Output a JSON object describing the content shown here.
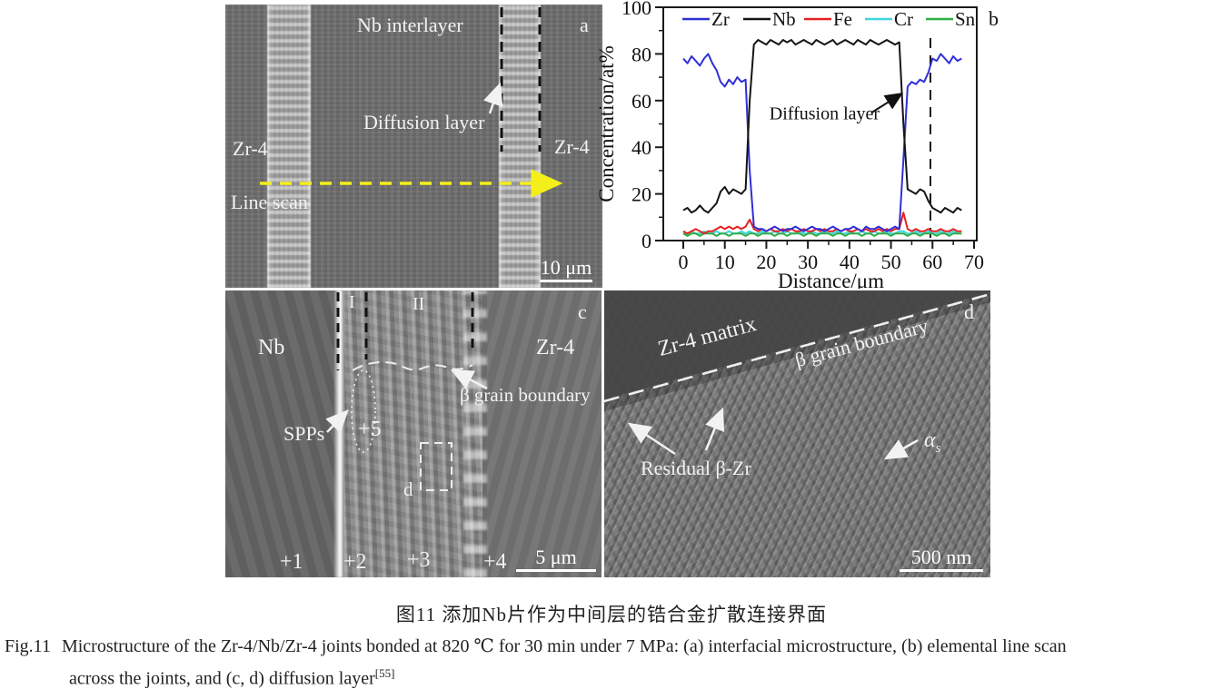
{
  "figure": {
    "panel_a": {
      "label": "a",
      "top_label": "Nb interlayer",
      "diffusion_label": "Diffusion layer",
      "left_material": "Zr-4",
      "right_material": "Zr-4",
      "line_scan": "Line scan",
      "scale_bar": "10 μm"
    },
    "panel_c": {
      "label": "c",
      "zone_1": "I",
      "zone_2": "II",
      "left_material": "Nb",
      "right_material": "Zr-4",
      "spps": "SPPs",
      "beta_gb": "β grain boundary",
      "detail_box_label": "d",
      "marker_1": "+1",
      "marker_2": "+2",
      "marker_3": "+3",
      "marker_4": "+4",
      "marker_5": "+5",
      "scale_bar": "5 μm"
    },
    "panel_d": {
      "label": "d",
      "matrix": "Zr-4 matrix",
      "beta_gb": "β grain boundary",
      "residual": "Residual β-Zr",
      "alpha": "α",
      "alpha_sub": "s",
      "scale_bar": "500 nm"
    },
    "colors": {
      "marker_yellow": "#f4ef1a",
      "sem_text_white": "#f2f2f2"
    }
  },
  "chart_data": {
    "type": "line",
    "title": "",
    "xlabel": "Distance/μm",
    "ylabel": "Concentration/at%",
    "panel_label": "b",
    "xlim": [
      0,
      70
    ],
    "ylim": [
      0,
      100
    ],
    "x_ticks": [
      0,
      10,
      20,
      30,
      40,
      50,
      60,
      70
    ],
    "y_ticks": [
      0,
      20,
      40,
      60,
      80,
      100
    ],
    "x_minor_ticks": [
      5,
      15,
      25,
      35,
      45,
      55,
      65
    ],
    "y_minor_ticks": [
      10,
      30,
      50,
      70,
      90
    ],
    "grid": false,
    "legend_position": "top-inside",
    "dashed_guide_x": 59.5,
    "annotation": {
      "text": "Diffusion layer",
      "text_x": 34,
      "text_y": 52,
      "arrow_from_x": 45.5,
      "arrow_from_y": 55,
      "arrow_to_x": 52.6,
      "arrow_to_y": 63
    },
    "x_step": 1,
    "series": [
      {
        "name": "Cr",
        "color": "#3ed6e0",
        "values": [
          3,
          3,
          4,
          3,
          3,
          4,
          3,
          3,
          4,
          3,
          3,
          4,
          3,
          3,
          4,
          3,
          4,
          3,
          3,
          4,
          3,
          3,
          4,
          3,
          3,
          4,
          3,
          3,
          4,
          3,
          3,
          4,
          3,
          3,
          4,
          3,
          3,
          4,
          3,
          3,
          4,
          3,
          3,
          4,
          3,
          3,
          4,
          3,
          3,
          4,
          3,
          3,
          4,
          4,
          3,
          3,
          4,
          3,
          3,
          4,
          3,
          3,
          4,
          3,
          3,
          4,
          3,
          3
        ]
      },
      {
        "name": "Sn",
        "color": "#2fae44",
        "values": [
          3,
          2,
          3,
          3,
          2,
          3,
          3,
          3,
          2,
          3,
          3,
          2,
          3,
          3,
          3,
          2,
          3,
          3,
          2,
          3,
          3,
          3,
          2,
          3,
          3,
          2,
          3,
          3,
          3,
          2,
          3,
          3,
          2,
          3,
          3,
          3,
          2,
          3,
          3,
          2,
          3,
          3,
          3,
          2,
          3,
          3,
          2,
          3,
          3,
          3,
          2,
          3,
          3,
          3,
          2,
          3,
          3,
          2,
          3,
          3,
          3,
          2,
          3,
          3,
          2,
          3,
          3,
          3
        ]
      },
      {
        "name": "Fe",
        "color": "#e32222",
        "values": [
          4,
          3,
          4,
          5,
          4,
          3,
          4,
          4,
          5,
          6,
          5,
          6,
          5,
          6,
          5,
          6,
          9,
          5,
          4,
          5,
          4,
          5,
          4,
          4,
          5,
          4,
          5,
          4,
          4,
          5,
          4,
          4,
          5,
          4,
          5,
          4,
          4,
          5,
          4,
          5,
          4,
          4,
          5,
          4,
          5,
          4,
          4,
          5,
          4,
          5,
          4,
          5,
          5,
          12,
          5,
          4,
          5,
          4,
          4,
          5,
          4,
          4,
          5,
          4,
          4,
          5,
          4,
          4
        ]
      },
      {
        "name": "Zr",
        "color": "#2f2fd8",
        "values": [
          78,
          76,
          79,
          77,
          75,
          78,
          80,
          76,
          73,
          68,
          66,
          69,
          67,
          70,
          68,
          69,
          30,
          6,
          5,
          5,
          4,
          5,
          6,
          5,
          4,
          5,
          5,
          6,
          5,
          4,
          5,
          6,
          5,
          5,
          4,
          5,
          6,
          5,
          4,
          5,
          5,
          6,
          5,
          4,
          6,
          5,
          5,
          6,
          5,
          4,
          5,
          6,
          5,
          35,
          66,
          68,
          67,
          69,
          68,
          72,
          78,
          77,
          80,
          78,
          76,
          79,
          77,
          78
        ]
      },
      {
        "name": "Nb",
        "color": "#141414",
        "values": [
          13,
          14,
          12,
          13,
          15,
          13,
          12,
          14,
          16,
          21,
          23,
          20,
          22,
          21,
          20,
          22,
          60,
          84,
          86,
          85,
          84,
          86,
          85,
          84,
          86,
          85,
          86,
          84,
          85,
          86,
          85,
          84,
          86,
          85,
          84,
          85,
          86,
          84,
          85,
          86,
          85,
          84,
          86,
          85,
          84,
          86,
          85,
          84,
          85,
          86,
          85,
          84,
          85,
          50,
          22,
          21,
          20,
          22,
          21,
          17,
          14,
          13,
          12,
          14,
          13,
          12,
          14,
          13
        ]
      }
    ],
    "legend_order": [
      "Zr",
      "Nb",
      "Fe",
      "Cr",
      "Sn"
    ]
  },
  "caption": {
    "zh": "图11  添加Nb片作为中间层的锆合金扩散连接界面",
    "fig_label": "Fig.11",
    "en_line1": "Microstructure of the Zr-4/Nb/Zr-4 joints bonded at 820 ℃ for 30 min under 7 MPa: (a) interfacial microstructure, (b) elemental line scan",
    "en_line2": "across the joints, and (c, d) diffusion layer",
    "ref": "[55]"
  }
}
